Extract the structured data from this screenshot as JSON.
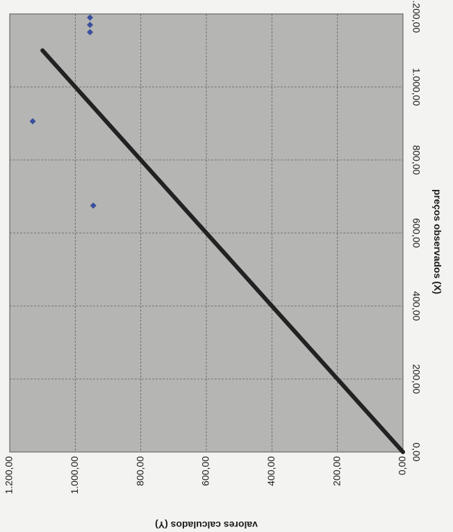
{
  "chart_data": {
    "type": "scatter",
    "title": "",
    "xlabel": "preços observados (X)",
    "ylabel": "valores calculados (Y)",
    "xlim": [
      0,
      1200
    ],
    "ylim": [
      0,
      1200
    ],
    "x_ticks": [
      "0,00",
      "200,00",
      "400,00",
      "600,00",
      "800,00",
      "1.000,00",
      "1.200,00"
    ],
    "y_ticks": [
      "0,00",
      "200,00",
      "400,00",
      "600,00",
      "800,00",
      "1.000,00",
      "1.200,00"
    ],
    "grid": true,
    "orientation": "rotated 90° clockwise",
    "colors": {
      "plot_background": "#b5b5b3",
      "grid": "#5c5c5c",
      "points": "#3a4f9c",
      "line": "#222222"
    },
    "series": [
      {
        "type": "scatter",
        "points": [
          {
            "x": 906,
            "y": 1130
          },
          {
            "x": 675,
            "y": 945
          },
          {
            "x": 1150,
            "y": 955
          },
          {
            "x": 1170,
            "y": 955
          },
          {
            "x": 1190,
            "y": 955
          }
        ]
      },
      {
        "type": "line",
        "points": [
          {
            "x": 0,
            "y": 0
          },
          {
            "x": 1100,
            "y": 1100
          }
        ]
      }
    ]
  }
}
